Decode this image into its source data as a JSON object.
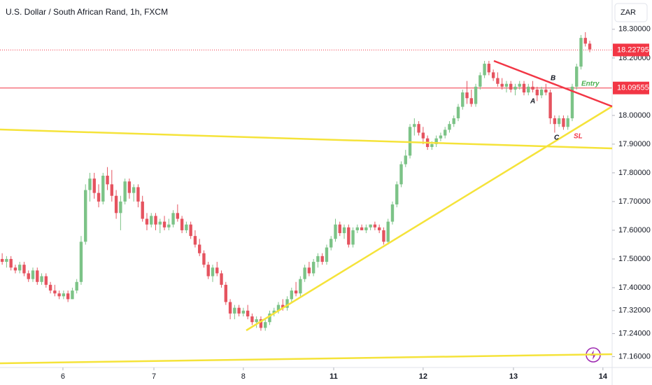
{
  "chart_data": {
    "type": "candlestick",
    "title": "U.S. Dollar / South African Rand, 1h, FXCM",
    "currency": "ZAR",
    "up_color": "#7cc387",
    "down_color": "#e5535f",
    "grid": false,
    "ylim": [
      17.122,
      18.402
    ],
    "yticks": [
      {
        "value": 18.3,
        "label": "18.30000"
      },
      {
        "value": 18.2,
        "label": "18.20000"
      },
      {
        "value": 18.0,
        "label": "18.00000"
      },
      {
        "value": 17.9,
        "label": "17.90000"
      },
      {
        "value": 17.8,
        "label": "17.80000"
      },
      {
        "value": 17.7,
        "label": "17.70000"
      },
      {
        "value": 17.6,
        "label": "17.60000"
      },
      {
        "value": 17.5,
        "label": "17.50000"
      },
      {
        "value": 17.4,
        "label": "17.40000"
      },
      {
        "value": 17.32,
        "label": "17.32000"
      },
      {
        "value": 17.24,
        "label": "17.24000"
      },
      {
        "value": 17.16,
        "label": "17.16000"
      }
    ],
    "xlim": [
      -0.5,
      139.1
    ],
    "xticks": [
      {
        "value": 13.85,
        "label": "6"
      },
      {
        "value": 34.6,
        "label": "7"
      },
      {
        "value": 55,
        "label": "8"
      },
      {
        "value": 75.6,
        "label": "11"
      },
      {
        "value": 96,
        "label": "12"
      },
      {
        "value": 116.6,
        "label": "13"
      },
      {
        "value": 137,
        "label": "14"
      }
    ],
    "price_lines": [
      {
        "value": 18.22795,
        "color": "#f23645",
        "style": "dotted"
      },
      {
        "value": 18.09555,
        "color": "#f23645",
        "style": "solid"
      }
    ],
    "annotations": [
      "A",
      "B",
      "C",
      "SL",
      "Entry"
    ],
    "candles": [
      [
        17.5,
        17.52,
        17.48,
        17.49
      ],
      [
        17.49,
        17.51,
        17.47,
        17.5
      ],
      [
        17.5,
        17.51,
        17.46,
        17.47
      ],
      [
        17.47,
        17.48,
        17.45,
        17.46
      ],
      [
        17.46,
        17.49,
        17.45,
        17.48
      ],
      [
        17.48,
        17.49,
        17.44,
        17.45
      ],
      [
        17.45,
        17.46,
        17.42,
        17.43
      ],
      [
        17.43,
        17.47,
        17.42,
        17.46
      ],
      [
        17.46,
        17.47,
        17.41,
        17.42
      ],
      [
        17.42,
        17.45,
        17.41,
        17.44
      ],
      [
        17.44,
        17.45,
        17.4,
        17.41
      ],
      [
        17.41,
        17.42,
        17.38,
        17.39
      ],
      [
        17.39,
        17.41,
        17.37,
        17.38
      ],
      [
        17.38,
        17.39,
        17.36,
        17.37
      ],
      [
        17.37,
        17.39,
        17.36,
        17.38
      ],
      [
        17.38,
        17.39,
        17.35,
        17.36
      ],
      [
        17.36,
        17.4,
        17.36,
        17.39
      ],
      [
        17.39,
        17.43,
        17.38,
        17.42
      ],
      [
        17.42,
        17.58,
        17.41,
        17.56
      ],
      [
        17.56,
        17.76,
        17.55,
        17.74
      ],
      [
        17.74,
        17.8,
        17.7,
        17.78
      ],
      [
        17.78,
        17.8,
        17.71,
        17.73
      ],
      [
        17.73,
        17.76,
        17.68,
        17.7
      ],
      [
        17.7,
        17.8,
        17.69,
        17.79
      ],
      [
        17.79,
        17.82,
        17.74,
        17.76
      ],
      [
        17.76,
        17.81,
        17.7,
        17.72
      ],
      [
        17.72,
        17.74,
        17.64,
        17.66
      ],
      [
        17.66,
        17.72,
        17.6,
        17.7
      ],
      [
        17.7,
        17.78,
        17.69,
        17.77
      ],
      [
        17.77,
        17.78,
        17.71,
        17.73
      ],
      [
        17.73,
        17.76,
        17.7,
        17.75
      ],
      [
        17.75,
        17.76,
        17.68,
        17.7
      ],
      [
        17.7,
        17.72,
        17.63,
        17.64
      ],
      [
        17.64,
        17.66,
        17.6,
        17.62
      ],
      [
        17.62,
        17.66,
        17.61,
        17.65
      ],
      [
        17.65,
        17.66,
        17.6,
        17.62
      ],
      [
        17.62,
        17.64,
        17.59,
        17.63
      ],
      [
        17.63,
        17.65,
        17.6,
        17.61
      ],
      [
        17.61,
        17.64,
        17.6,
        17.62
      ],
      [
        17.62,
        17.67,
        17.61,
        17.66
      ],
      [
        17.66,
        17.69,
        17.63,
        17.64
      ],
      [
        17.64,
        17.65,
        17.59,
        17.6
      ],
      [
        17.6,
        17.63,
        17.59,
        17.62
      ],
      [
        17.62,
        17.63,
        17.57,
        17.58
      ],
      [
        17.58,
        17.6,
        17.54,
        17.55
      ],
      [
        17.55,
        17.57,
        17.51,
        17.52
      ],
      [
        17.52,
        17.53,
        17.47,
        17.48
      ],
      [
        17.48,
        17.49,
        17.43,
        17.44
      ],
      [
        17.44,
        17.48,
        17.42,
        17.47
      ],
      [
        17.47,
        17.49,
        17.44,
        17.45
      ],
      [
        17.45,
        17.46,
        17.4,
        17.41
      ],
      [
        17.41,
        17.42,
        17.34,
        17.35
      ],
      [
        17.35,
        17.36,
        17.29,
        17.31
      ],
      [
        17.31,
        17.34,
        17.29,
        17.33
      ],
      [
        17.33,
        17.34,
        17.3,
        17.31
      ],
      [
        17.31,
        17.33,
        17.3,
        17.32
      ],
      [
        17.32,
        17.34,
        17.29,
        17.3
      ],
      [
        17.3,
        17.31,
        17.27,
        17.28
      ],
      [
        17.28,
        17.3,
        17.26,
        17.29
      ],
      [
        17.29,
        17.3,
        17.25,
        17.26
      ],
      [
        17.26,
        17.29,
        17.25,
        17.28
      ],
      [
        17.28,
        17.32,
        17.27,
        17.31
      ],
      [
        17.31,
        17.33,
        17.3,
        17.32
      ],
      [
        17.32,
        17.35,
        17.31,
        17.34
      ],
      [
        17.34,
        17.36,
        17.32,
        17.33
      ],
      [
        17.33,
        17.37,
        17.32,
        17.36
      ],
      [
        17.36,
        17.4,
        17.35,
        17.39
      ],
      [
        17.39,
        17.42,
        17.37,
        17.38
      ],
      [
        17.38,
        17.44,
        17.37,
        17.43
      ],
      [
        17.43,
        17.48,
        17.42,
        17.47
      ],
      [
        17.47,
        17.49,
        17.44,
        17.45
      ],
      [
        17.45,
        17.5,
        17.44,
        17.49
      ],
      [
        17.49,
        17.52,
        17.47,
        17.51
      ],
      [
        17.51,
        17.52,
        17.48,
        17.49
      ],
      [
        17.49,
        17.55,
        17.48,
        17.54
      ],
      [
        17.54,
        17.58,
        17.53,
        17.57
      ],
      [
        17.57,
        17.64,
        17.56,
        17.62
      ],
      [
        17.62,
        17.63,
        17.58,
        17.59
      ],
      [
        17.59,
        17.62,
        17.57,
        17.61
      ],
      [
        17.61,
        17.62,
        17.54,
        17.55
      ],
      [
        17.55,
        17.61,
        17.54,
        17.6
      ],
      [
        17.6,
        17.62,
        17.59,
        17.61
      ],
      [
        17.61,
        17.62,
        17.6,
        17.6
      ],
      [
        17.6,
        17.62,
        17.59,
        17.61
      ],
      [
        17.61,
        17.62,
        17.6,
        17.62
      ],
      [
        17.62,
        17.63,
        17.6,
        17.61
      ],
      [
        17.61,
        17.62,
        17.59,
        17.6
      ],
      [
        17.6,
        17.61,
        17.55,
        17.56
      ],
      [
        17.56,
        17.64,
        17.55,
        17.63
      ],
      [
        17.63,
        17.7,
        17.62,
        17.69
      ],
      [
        17.69,
        17.77,
        17.68,
        17.76
      ],
      [
        17.76,
        17.84,
        17.75,
        17.83
      ],
      [
        17.83,
        17.88,
        17.82,
        17.86
      ],
      [
        17.86,
        17.97,
        17.85,
        17.96
      ],
      [
        17.96,
        17.99,
        17.93,
        17.97
      ],
      [
        17.97,
        17.98,
        17.93,
        17.94
      ],
      [
        17.94,
        17.96,
        17.9,
        17.92
      ],
      [
        17.92,
        17.93,
        17.88,
        17.89
      ],
      [
        17.89,
        17.91,
        17.88,
        17.9
      ],
      [
        17.9,
        17.93,
        17.89,
        17.92
      ],
      [
        17.92,
        17.94,
        17.91,
        17.93
      ],
      [
        17.93,
        17.96,
        17.92,
        17.95
      ],
      [
        17.95,
        17.98,
        17.94,
        17.97
      ],
      [
        17.97,
        18.0,
        17.96,
        17.99
      ],
      [
        17.99,
        18.04,
        17.98,
        18.03
      ],
      [
        18.03,
        18.09,
        18.02,
        18.08
      ],
      [
        18.08,
        18.12,
        18.04,
        18.06
      ],
      [
        18.06,
        18.09,
        18.03,
        18.04
      ],
      [
        18.04,
        18.11,
        18.03,
        18.1
      ],
      [
        18.1,
        18.15,
        18.09,
        18.14
      ],
      [
        18.14,
        18.19,
        18.13,
        18.18
      ],
      [
        18.18,
        18.19,
        18.14,
        18.15
      ],
      [
        18.15,
        18.16,
        18.12,
        18.13
      ],
      [
        18.13,
        18.15,
        18.1,
        18.11
      ],
      [
        18.11,
        18.13,
        18.09,
        18.1
      ],
      [
        18.1,
        18.12,
        18.08,
        18.11
      ],
      [
        18.11,
        18.12,
        18.08,
        18.09
      ],
      [
        18.09,
        18.11,
        18.07,
        18.1
      ],
      [
        18.1,
        18.12,
        18.09,
        18.11
      ],
      [
        18.11,
        18.12,
        18.07,
        18.08
      ],
      [
        18.08,
        18.11,
        18.07,
        18.1
      ],
      [
        18.1,
        18.12,
        18.08,
        18.09
      ],
      [
        18.09,
        18.1,
        18.05,
        18.07
      ],
      [
        18.07,
        18.1,
        18.06,
        18.09
      ],
      [
        18.09,
        18.11,
        18.07,
        18.08
      ],
      [
        18.08,
        18.09,
        17.97,
        17.99
      ],
      [
        17.99,
        18.0,
        17.94,
        17.97
      ],
      [
        17.97,
        18.0,
        17.96,
        17.99
      ],
      [
        17.99,
        18.0,
        17.95,
        17.96
      ],
      [
        17.96,
        18.0,
        17.95,
        17.99
      ],
      [
        17.99,
        18.11,
        17.98,
        18.1
      ],
      [
        18.1,
        18.18,
        18.09,
        18.17
      ],
      [
        18.17,
        18.28,
        18.16,
        18.27
      ],
      [
        18.27,
        18.29,
        18.24,
        18.25
      ],
      [
        18.25,
        18.26,
        18.22,
        18.23
      ]
    ]
  }
}
